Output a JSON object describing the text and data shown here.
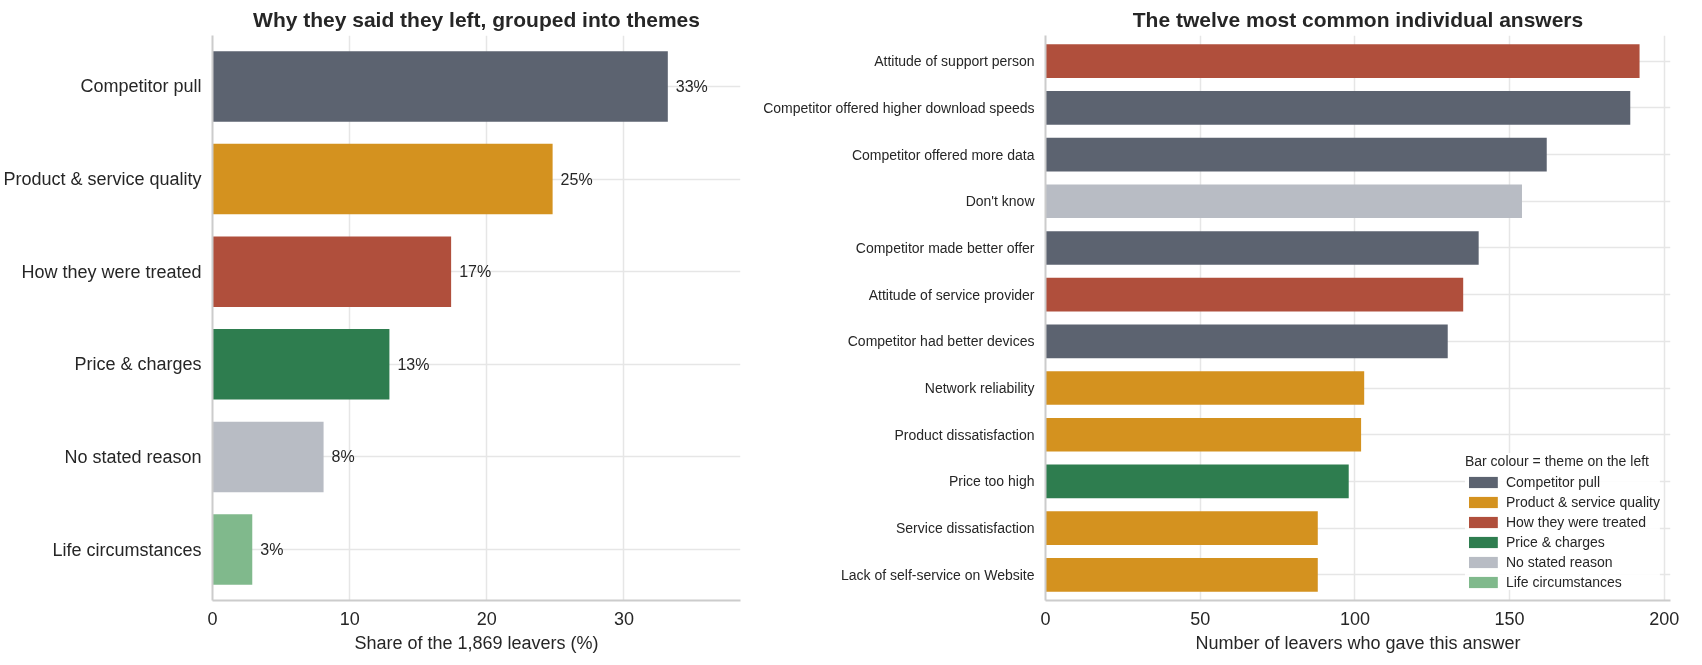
{
  "chart_data": [
    {
      "type": "bar",
      "orientation": "horizontal",
      "title": "Why they said they left, grouped into themes",
      "xlabel": "Share of the 1,869 leavers (%)",
      "categories": [
        "Competitor pull",
        "Product & service quality",
        "How they were treated",
        "Price & charges",
        "No stated reason",
        "Life circumstances"
      ],
      "values": [
        33.2,
        24.8,
        17.4,
        12.9,
        8.1,
        2.9
      ],
      "value_labels": [
        "33%",
        "25%",
        "17%",
        "13%",
        "8%",
        "3%"
      ],
      "colors": [
        "#5c6370",
        "#d4921f",
        "#b04f3c",
        "#2e7d4f",
        "#b8bcc4",
        "#80b98c"
      ],
      "xlim": [
        0,
        38.5
      ],
      "xticks": [
        0,
        10,
        20,
        30
      ],
      "grid": true
    },
    {
      "type": "bar",
      "orientation": "horizontal",
      "title": "The twelve most common individual answers",
      "xlabel": "Number of leavers who gave this answer",
      "categories": [
        "Attitude of support person",
        "Competitor offered higher download speeds",
        "Competitor offered more data",
        "Don't know",
        "Competitor made better offer",
        "Attitude of service provider",
        "Competitor had better devices",
        "Network reliability",
        "Product dissatisfaction",
        "Price too high",
        "Service dissatisfaction",
        "Lack of self-service on Website"
      ],
      "series": [
        {
          "name": "Competitor pull",
          "color": "#5c6370",
          "values": [
            null,
            189,
            162,
            null,
            140,
            null,
            130,
            null,
            null,
            null,
            null,
            null
          ]
        },
        {
          "name": "Product & service quality",
          "color": "#d4921f",
          "values": [
            null,
            null,
            null,
            null,
            null,
            null,
            null,
            103,
            102,
            null,
            88,
            88
          ]
        },
        {
          "name": "How they were treated",
          "color": "#b04f3c",
          "values": [
            192,
            null,
            null,
            null,
            null,
            135,
            null,
            null,
            null,
            null,
            null,
            null
          ]
        },
        {
          "name": "Price & charges",
          "color": "#2e7d4f",
          "values": [
            null,
            null,
            null,
            null,
            null,
            null,
            null,
            null,
            null,
            98,
            null,
            null
          ]
        },
        {
          "name": "No stated reason",
          "color": "#b8bcc4",
          "values": [
            null,
            null,
            null,
            154,
            null,
            null,
            null,
            null,
            null,
            null,
            null,
            null
          ]
        },
        {
          "name": "Life circumstances",
          "color": "#80b98c",
          "values": [
            null,
            null,
            null,
            null,
            null,
            null,
            null,
            null,
            null,
            null,
            null,
            null
          ]
        }
      ],
      "legend": "bottom right",
      "legend_title": "Bar colour = theme on the left",
      "xlim": [
        0,
        202
      ],
      "xticks": [
        0,
        50,
        100,
        150,
        200
      ],
      "grid": true
    }
  ]
}
